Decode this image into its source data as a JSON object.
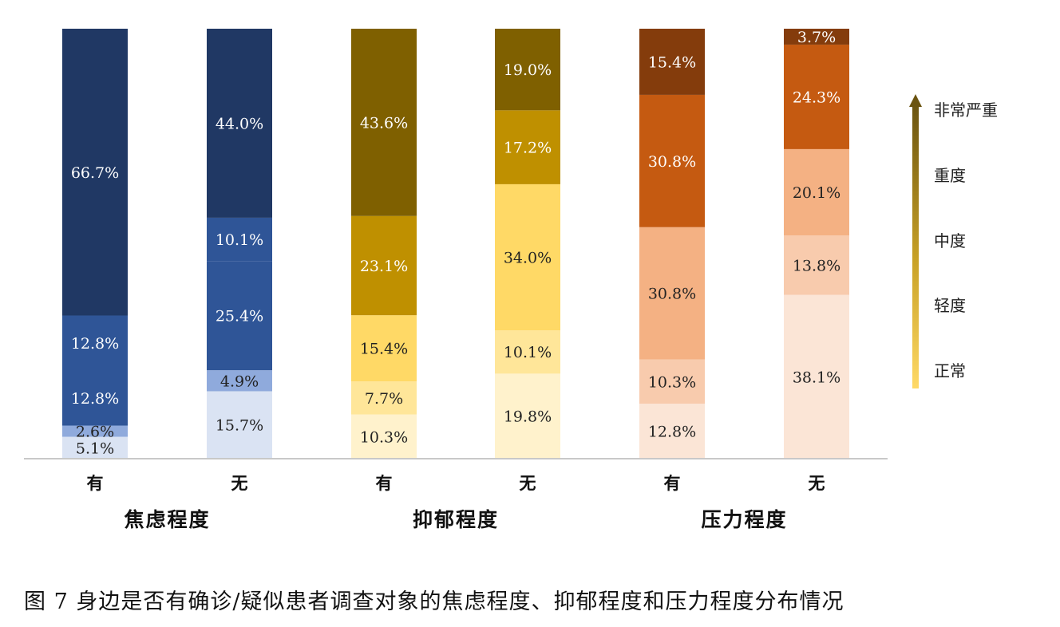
{
  "caption": "图 7 身边是否有确诊/疑似患者调查对象的焦虑程度、抑郁程度和压力程度分布情况",
  "legend": {
    "levels": [
      "非常严重",
      "重度",
      "中度",
      "轻度",
      "正常"
    ]
  },
  "chart_data": {
    "type": "bar",
    "stacked": true,
    "normalized": true,
    "stack_order_bottom_to_top": [
      "正常",
      "轻度",
      "中度",
      "重度",
      "非常严重"
    ],
    "groups": [
      {
        "name": "焦虑程度",
        "colors": [
          "#dae3f3",
          "#8faadc",
          "#2f5597",
          "#2f5597",
          "#203864"
        ],
        "label_colors": [
          "#222222",
          "#222222",
          "#ffffff",
          "#ffffff",
          "#ffffff"
        ],
        "bars": [
          {
            "category": "有",
            "values": [
              5.1,
              2.6,
              12.8,
              12.8,
              66.7
            ],
            "labels": [
              "5.1%",
              "2.6%",
              "12.8%",
              "12.8%",
              "66.7%"
            ]
          },
          {
            "category": "无",
            "values": [
              15.7,
              4.9,
              25.4,
              10.1,
              44.0
            ],
            "labels": [
              "15.7%",
              "4.9%",
              "25.4%",
              "10.1%",
              "44.0%"
            ]
          }
        ]
      },
      {
        "name": "抑郁程度",
        "colors": [
          "#fff2cc",
          "#ffe699",
          "#ffd966",
          "#bf9000",
          "#7f6000"
        ],
        "label_colors": [
          "#222222",
          "#222222",
          "#222222",
          "#ffffff",
          "#ffffff"
        ],
        "bars": [
          {
            "category": "有",
            "values": [
              10.3,
              7.7,
              15.4,
              23.1,
              43.6
            ],
            "labels": [
              "10.3%",
              "7.7%",
              "15.4%",
              "23.1%",
              "43.6%"
            ]
          },
          {
            "category": "无",
            "values": [
              19.8,
              10.1,
              34.0,
              17.2,
              19.0
            ],
            "labels": [
              "19.8%",
              "10.1%",
              "34.0%",
              "17.2%",
              "19.0%"
            ]
          }
        ]
      },
      {
        "name": "压力程度",
        "colors": [
          "#fbe5d6",
          "#f8cbad",
          "#f4b183",
          "#c55a11",
          "#843c0c"
        ],
        "label_colors": [
          "#222222",
          "#222222",
          "#222222",
          "#ffffff",
          "#ffffff"
        ],
        "bars": [
          {
            "category": "有",
            "values": [
              12.8,
              10.3,
              30.8,
              30.8,
              15.4
            ],
            "labels": [
              "12.8%",
              "10.3%",
              "30.8%",
              "30.8%",
              "15.4%"
            ]
          },
          {
            "category": "无",
            "values": [
              38.1,
              13.8,
              20.1,
              24.3,
              3.7
            ],
            "labels": [
              "38.1%",
              "13.8%",
              "20.1%",
              "24.3%",
              "3.7%"
            ]
          }
        ]
      }
    ],
    "ylim": [
      0,
      100
    ],
    "grid": false,
    "legend_position": "right"
  }
}
